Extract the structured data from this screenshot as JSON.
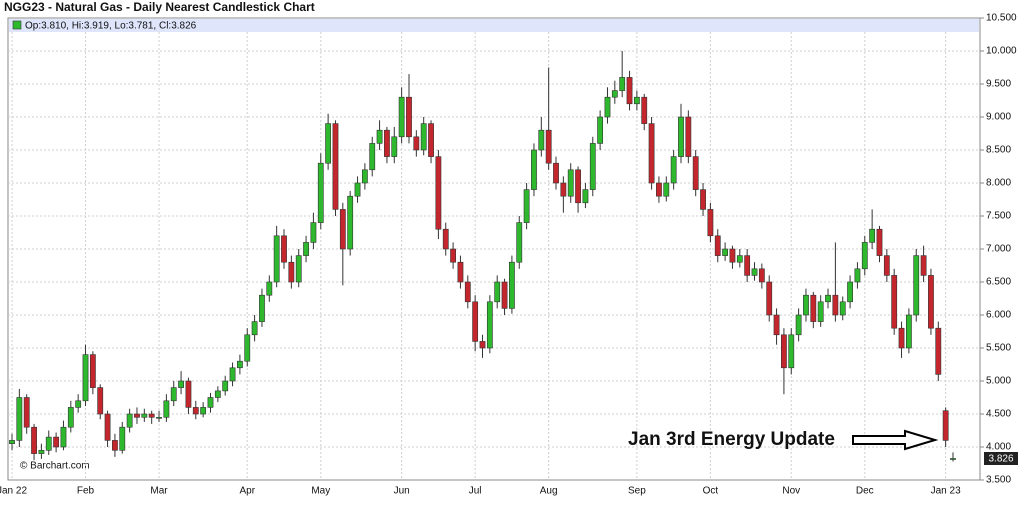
{
  "chart_data": {
    "type": "candlestick",
    "title": "NGG23 - Natural Gas - Daily Nearest Candlestick Chart",
    "legend_text": "Op:3.810, Hi:3.919, Lo:3.781, Cl:3.826",
    "source": "© Barchart.com",
    "annotation": "Jan 3rd Energy Update",
    "last_price": "3.826",
    "up_color": "#2db82d",
    "down_color": "#c4262e",
    "grid": true,
    "ylim": [
      3.5,
      10.5
    ],
    "yticks": [
      {
        "value": 3.5,
        "label": "3.500"
      },
      {
        "value": 4,
        "label": "4.000"
      },
      {
        "value": 4.5,
        "label": "4.500"
      },
      {
        "value": 5,
        "label": "5.000"
      },
      {
        "value": 5.5,
        "label": "5.500"
      },
      {
        "value": 6,
        "label": "6.000"
      },
      {
        "value": 6.5,
        "label": "6.500"
      },
      {
        "value": 7,
        "label": "7.000"
      },
      {
        "value": 7.5,
        "label": "7.500"
      },
      {
        "value": 8,
        "label": "8.000"
      },
      {
        "value": 8.5,
        "label": "8.500"
      },
      {
        "value": 9,
        "label": "9.000"
      },
      {
        "value": 9.5,
        "label": "9.500"
      },
      {
        "value": 10,
        "label": "10.000"
      },
      {
        "value": 10.5,
        "label": "10.500"
      }
    ],
    "categories": [
      "Jan 22",
      null,
      null,
      null,
      null,
      null,
      null,
      null,
      null,
      null,
      "Feb",
      null,
      null,
      null,
      null,
      null,
      null,
      null,
      null,
      null,
      "Mar",
      null,
      null,
      null,
      null,
      null,
      null,
      null,
      null,
      null,
      null,
      null,
      "Apr",
      null,
      null,
      null,
      null,
      null,
      null,
      null,
      null,
      null,
      "May",
      null,
      null,
      null,
      null,
      null,
      null,
      null,
      null,
      null,
      null,
      "Jun",
      null,
      null,
      null,
      null,
      null,
      null,
      null,
      null,
      null,
      "Jul",
      null,
      null,
      null,
      null,
      null,
      null,
      null,
      null,
      null,
      "Aug",
      null,
      null,
      null,
      null,
      null,
      null,
      null,
      null,
      null,
      null,
      null,
      "Sep",
      null,
      null,
      null,
      null,
      null,
      null,
      null,
      null,
      null,
      "Oct",
      null,
      null,
      null,
      null,
      null,
      null,
      null,
      null,
      null,
      null,
      "Nov",
      null,
      null,
      null,
      null,
      null,
      null,
      null,
      null,
      null,
      "Dec",
      null,
      null,
      null,
      null,
      null,
      null,
      null,
      null,
      null,
      null,
      "Jan 23",
      null
    ],
    "open": [
      4.05,
      4.1,
      4.75,
      4.3,
      3.9,
      3.95,
      4.15,
      4.0,
      4.3,
      4.6,
      4.7,
      5.4,
      4.9,
      4.5,
      4.1,
      3.95,
      4.3,
      4.5,
      4.45,
      4.5,
      4.45,
      4.45,
      4.7,
      4.9,
      5.0,
      4.6,
      4.5,
      4.6,
      4.75,
      4.85,
      5.0,
      5.2,
      5.3,
      5.7,
      5.9,
      6.3,
      6.5,
      7.2,
      6.8,
      6.5,
      6.9,
      7.1,
      7.4,
      8.3,
      8.9,
      7.6,
      7.0,
      7.8,
      8.0,
      8.2,
      8.6,
      8.8,
      8.4,
      8.7,
      9.3,
      8.7,
      8.5,
      8.9,
      8.4,
      7.3,
      7.0,
      6.8,
      6.5,
      6.2,
      5.6,
      5.5,
      6.2,
      6.5,
      6.1,
      6.8,
      7.4,
      7.9,
      8.5,
      8.8,
      8.3,
      8.0,
      7.8,
      8.2,
      7.7,
      7.9,
      8.6,
      9.0,
      9.3,
      9.4,
      9.6,
      9.2,
      9.3,
      8.9,
      8.0,
      7.8,
      8.0,
      8.4,
      9.0,
      8.4,
      7.9,
      7.6,
      7.2,
      6.9,
      7.0,
      6.8,
      6.9,
      6.6,
      6.7,
      6.5,
      6.0,
      5.7,
      5.2,
      5.7,
      6.0,
      6.3,
      5.9,
      6.2,
      6.3,
      6.0,
      6.2,
      6.5,
      6.7,
      7.1,
      7.3,
      6.9,
      6.6,
      5.8,
      5.5,
      6.0,
      6.9,
      6.6,
      5.8,
      4.55,
      3.81
    ],
    "high": [
      4.2,
      4.88,
      4.8,
      4.35,
      4.05,
      4.25,
      4.22,
      4.4,
      4.7,
      4.8,
      5.55,
      5.45,
      4.95,
      4.55,
      4.2,
      4.38,
      4.58,
      4.6,
      4.58,
      4.55,
      4.55,
      4.8,
      5.0,
      5.15,
      5.05,
      4.7,
      4.68,
      4.82,
      4.92,
      5.08,
      5.28,
      5.4,
      5.8,
      6.0,
      6.4,
      6.6,
      7.35,
      7.3,
      6.9,
      7.0,
      7.2,
      7.55,
      8.45,
      9.05,
      8.95,
      7.7,
      7.88,
      8.1,
      8.3,
      8.7,
      8.95,
      8.85,
      8.85,
      9.45,
      9.65,
      8.8,
      9.0,
      8.95,
      8.5,
      7.4,
      7.1,
      6.9,
      6.6,
      6.3,
      5.7,
      6.3,
      6.6,
      6.55,
      6.9,
      7.5,
      8.0,
      8.6,
      9.0,
      9.75,
      8.4,
      8.1,
      8.3,
      8.25,
      8.0,
      8.7,
      9.1,
      9.45,
      9.55,
      10.0,
      9.7,
      9.4,
      9.35,
      9.0,
      8.1,
      8.1,
      8.5,
      9.2,
      9.1,
      8.5,
      8.0,
      7.7,
      7.3,
      7.1,
      7.05,
      7.0,
      7.0,
      6.8,
      6.78,
      6.6,
      6.1,
      5.8,
      5.8,
      6.1,
      6.4,
      6.35,
      6.3,
      6.4,
      7.1,
      6.28,
      6.6,
      6.8,
      7.2,
      7.6,
      7.35,
      7.0,
      6.7,
      5.9,
      6.1,
      7.0,
      7.05,
      6.7,
      5.9,
      4.6,
      3.919
    ],
    "low": [
      3.95,
      4.0,
      4.2,
      3.8,
      3.82,
      3.88,
      3.92,
      3.95,
      4.22,
      4.52,
      4.62,
      4.8,
      4.42,
      4.0,
      3.85,
      3.9,
      4.22,
      4.35,
      4.38,
      4.35,
      4.38,
      4.38,
      4.62,
      4.8,
      4.5,
      4.42,
      4.45,
      4.52,
      4.68,
      4.78,
      4.92,
      5.1,
      5.22,
      5.6,
      5.82,
      6.2,
      6.42,
      6.7,
      6.4,
      6.42,
      6.8,
      7.0,
      7.3,
      8.2,
      7.5,
      6.45,
      6.9,
      7.7,
      7.9,
      8.1,
      8.5,
      8.3,
      8.3,
      8.6,
      8.6,
      8.4,
      8.42,
      8.3,
      7.15,
      6.9,
      6.7,
      6.4,
      6.1,
      5.45,
      5.35,
      5.42,
      6.1,
      6.0,
      6.02,
      6.7,
      7.3,
      7.8,
      8.4,
      8.2,
      7.9,
      7.55,
      7.7,
      7.55,
      7.62,
      7.8,
      8.5,
      8.9,
      9.2,
      9.3,
      9.1,
      9.1,
      8.8,
      7.9,
      7.7,
      7.72,
      7.9,
      8.3,
      8.3,
      7.8,
      7.5,
      7.1,
      6.8,
      6.82,
      6.7,
      6.72,
      6.5,
      6.52,
      6.4,
      5.9,
      5.55,
      4.8,
      5.1,
      5.6,
      5.9,
      5.8,
      5.82,
      6.1,
      5.9,
      5.92,
      6.1,
      6.4,
      6.6,
      7.0,
      6.8,
      6.5,
      5.7,
      5.35,
      5.42,
      5.9,
      6.5,
      5.7,
      5.0,
      4.0,
      3.781
    ],
    "close": [
      4.1,
      4.75,
      4.3,
      3.9,
      3.95,
      4.15,
      4.0,
      4.3,
      4.6,
      4.7,
      5.4,
      4.9,
      4.5,
      4.1,
      3.95,
      4.3,
      4.5,
      4.45,
      4.5,
      4.45,
      4.45,
      4.7,
      4.9,
      5.0,
      4.6,
      4.5,
      4.6,
      4.75,
      4.85,
      5.0,
      5.2,
      5.3,
      5.7,
      5.9,
      6.3,
      6.5,
      7.2,
      6.8,
      6.5,
      6.9,
      7.1,
      7.4,
      8.3,
      8.9,
      7.6,
      7.0,
      7.8,
      8.0,
      8.2,
      8.6,
      8.8,
      8.4,
      8.7,
      9.3,
      8.7,
      8.5,
      8.9,
      8.4,
      7.3,
      7.0,
      6.8,
      6.5,
      6.2,
      5.6,
      5.5,
      6.2,
      6.5,
      6.1,
      6.8,
      7.4,
      7.9,
      8.5,
      8.8,
      8.3,
      8.0,
      7.8,
      8.2,
      7.7,
      7.9,
      8.6,
      9.0,
      9.3,
      9.4,
      9.6,
      9.2,
      9.3,
      8.9,
      8.0,
      7.8,
      8.0,
      8.4,
      9.0,
      8.4,
      7.9,
      7.6,
      7.2,
      6.9,
      7.0,
      6.8,
      6.9,
      6.6,
      6.7,
      6.5,
      6.0,
      5.7,
      5.2,
      5.7,
      6.0,
      6.3,
      5.9,
      6.2,
      6.3,
      6.0,
      6.2,
      6.5,
      6.7,
      7.1,
      7.3,
      6.9,
      6.6,
      5.8,
      5.5,
      6.0,
      6.9,
      6.6,
      5.8,
      5.1,
      4.1,
      3.826
    ]
  }
}
